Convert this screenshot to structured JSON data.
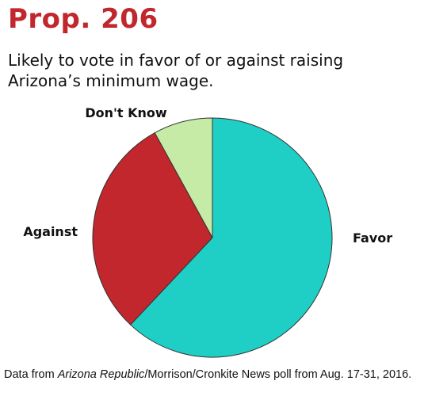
{
  "title": "Prop. 206",
  "subtitle": "Likely to vote in favor of or against raising Arizona’s minimum wage.",
  "footnote": {
    "prefix": "Data from ",
    "source_italic": "Arizona Republic",
    "suffix": "/Morrison/Cronkite News poll from Aug. 17-31, 2016."
  },
  "chart_data": {
    "type": "pie",
    "title": "Prop. 206",
    "subtitle": "Likely to vote in favor of or against raising Arizona’s minimum wage.",
    "start": "12 o'clock",
    "direction": "clockwise",
    "slices": [
      {
        "label": "Favor",
        "value": 62,
        "color": "#1fcfc6"
      },
      {
        "label": "Against",
        "value": 30,
        "color": "#c1272d"
      },
      {
        "label": "Don't Know",
        "value": 8,
        "color": "#c5eba6"
      }
    ],
    "outline_color": "#333333"
  }
}
